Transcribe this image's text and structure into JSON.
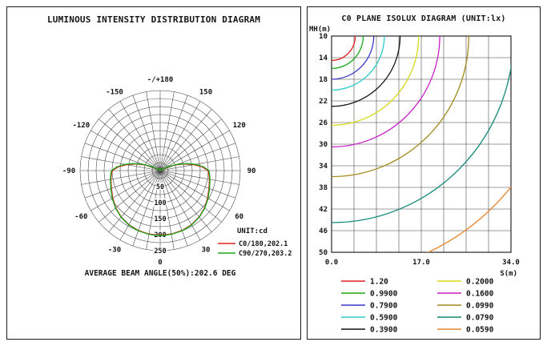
{
  "chart_data": [
    {
      "type": "line",
      "polar": true,
      "title": "LUMINOUS INTENSITY DISTRIBUTION DIAGRAM",
      "caption": "AVERAGE BEAM ANGLE(50%):202.6 DEG",
      "unit_label": "UNIT:cd",
      "radial_max": 250,
      "radial_ticks": [
        50,
        100,
        150,
        200,
        250
      ],
      "angle_labels": [
        {
          "angle": 180,
          "label": "-/+180"
        },
        {
          "angle": 150,
          "label": "150"
        },
        {
          "angle": 120,
          "label": "120"
        },
        {
          "angle": 90,
          "label": "90"
        },
        {
          "angle": 60,
          "label": "60"
        },
        {
          "angle": 30,
          "label": "30"
        },
        {
          "angle": 0,
          "label": "0"
        },
        {
          "angle": -30,
          "label": "-30"
        },
        {
          "angle": -60,
          "label": "-60"
        },
        {
          "angle": -90,
          "label": "-90"
        },
        {
          "angle": -120,
          "label": "-120"
        },
        {
          "angle": -150,
          "label": "-150"
        }
      ],
      "series": [
        {
          "name": "C0/180,202.1",
          "color": "#e02020",
          "points": [
            [
              0,
              202.1
            ],
            [
              10,
              201
            ],
            [
              20,
              199
            ],
            [
              30,
              195
            ],
            [
              40,
              189
            ],
            [
              50,
              181
            ],
            [
              60,
              171
            ],
            [
              70,
              162
            ],
            [
              80,
              156
            ],
            [
              85,
              153
            ],
            [
              90,
              149
            ],
            [
              95,
              132
            ],
            [
              100,
              107
            ],
            [
              105,
              80
            ],
            [
              110,
              52
            ],
            [
              115,
              28
            ],
            [
              120,
              12
            ],
            [
              125,
              4
            ],
            [
              130,
              0
            ],
            [
              150,
              0
            ],
            [
              175,
              0
            ],
            [
              180,
              6
            ]
          ]
        },
        {
          "name": "C90/270,203.2",
          "color": "#18a818",
          "points": [
            [
              0,
              203.2
            ],
            [
              10,
              202
            ],
            [
              20,
              200
            ],
            [
              30,
              196
            ],
            [
              40,
              190
            ],
            [
              50,
              182
            ],
            [
              60,
              173
            ],
            [
              70,
              164
            ],
            [
              80,
              158
            ],
            [
              85,
              155
            ],
            [
              90,
              152
            ],
            [
              95,
              136
            ],
            [
              100,
              112
            ],
            [
              105,
              85
            ],
            [
              110,
              57
            ],
            [
              115,
              32
            ],
            [
              120,
              15
            ],
            [
              125,
              5
            ],
            [
              130,
              0
            ],
            [
              150,
              0
            ],
            [
              175,
              0
            ],
            [
              180,
              8
            ]
          ]
        }
      ]
    },
    {
      "type": "line",
      "title": "C0 PLANE ISOLUX DIAGRAM (UNIT:lx)",
      "xlabel": "S(m)",
      "ylabel": "MH(m)",
      "xlim": [
        0,
        34
      ],
      "ylim": [
        10,
        50
      ],
      "x_ticks": [
        "0.0",
        "17.0",
        "34.0"
      ],
      "y_ticks": [
        "10",
        "14",
        "18",
        "22",
        "26",
        "30",
        "34",
        "38",
        "42",
        "46",
        "50"
      ],
      "origin": [
        0,
        10
      ],
      "grid": {
        "x_divisions": 8,
        "y_divisions": 10
      },
      "curves": [
        {
          "label": "1.20",
          "color": "#e02020",
          "radius_m": 4.5
        },
        {
          "label": "0.9900",
          "color": "#18a818",
          "radius_m": 6
        },
        {
          "label": "0.7900",
          "color": "#3838c8",
          "radius_m": 8
        },
        {
          "label": "0.5900",
          "color": "#30c8c8",
          "radius_m": 10
        },
        {
          "label": "0.3900",
          "color": "#101010",
          "radius_m": 13
        },
        {
          "label": "0.2000",
          "color": "#d8d818",
          "radius_m": 16.5
        },
        {
          "label": "0.1600",
          "color": "#c820c8",
          "radius_m": 20.5
        },
        {
          "label": "0.0990",
          "color": "#a08818",
          "radius_m": 26
        },
        {
          "label": "0.0790",
          "color": "#108878",
          "radius_m": 34.5
        },
        {
          "label": "0.0590",
          "color": "#e88830",
          "radius_m": 44
        }
      ]
    }
  ]
}
